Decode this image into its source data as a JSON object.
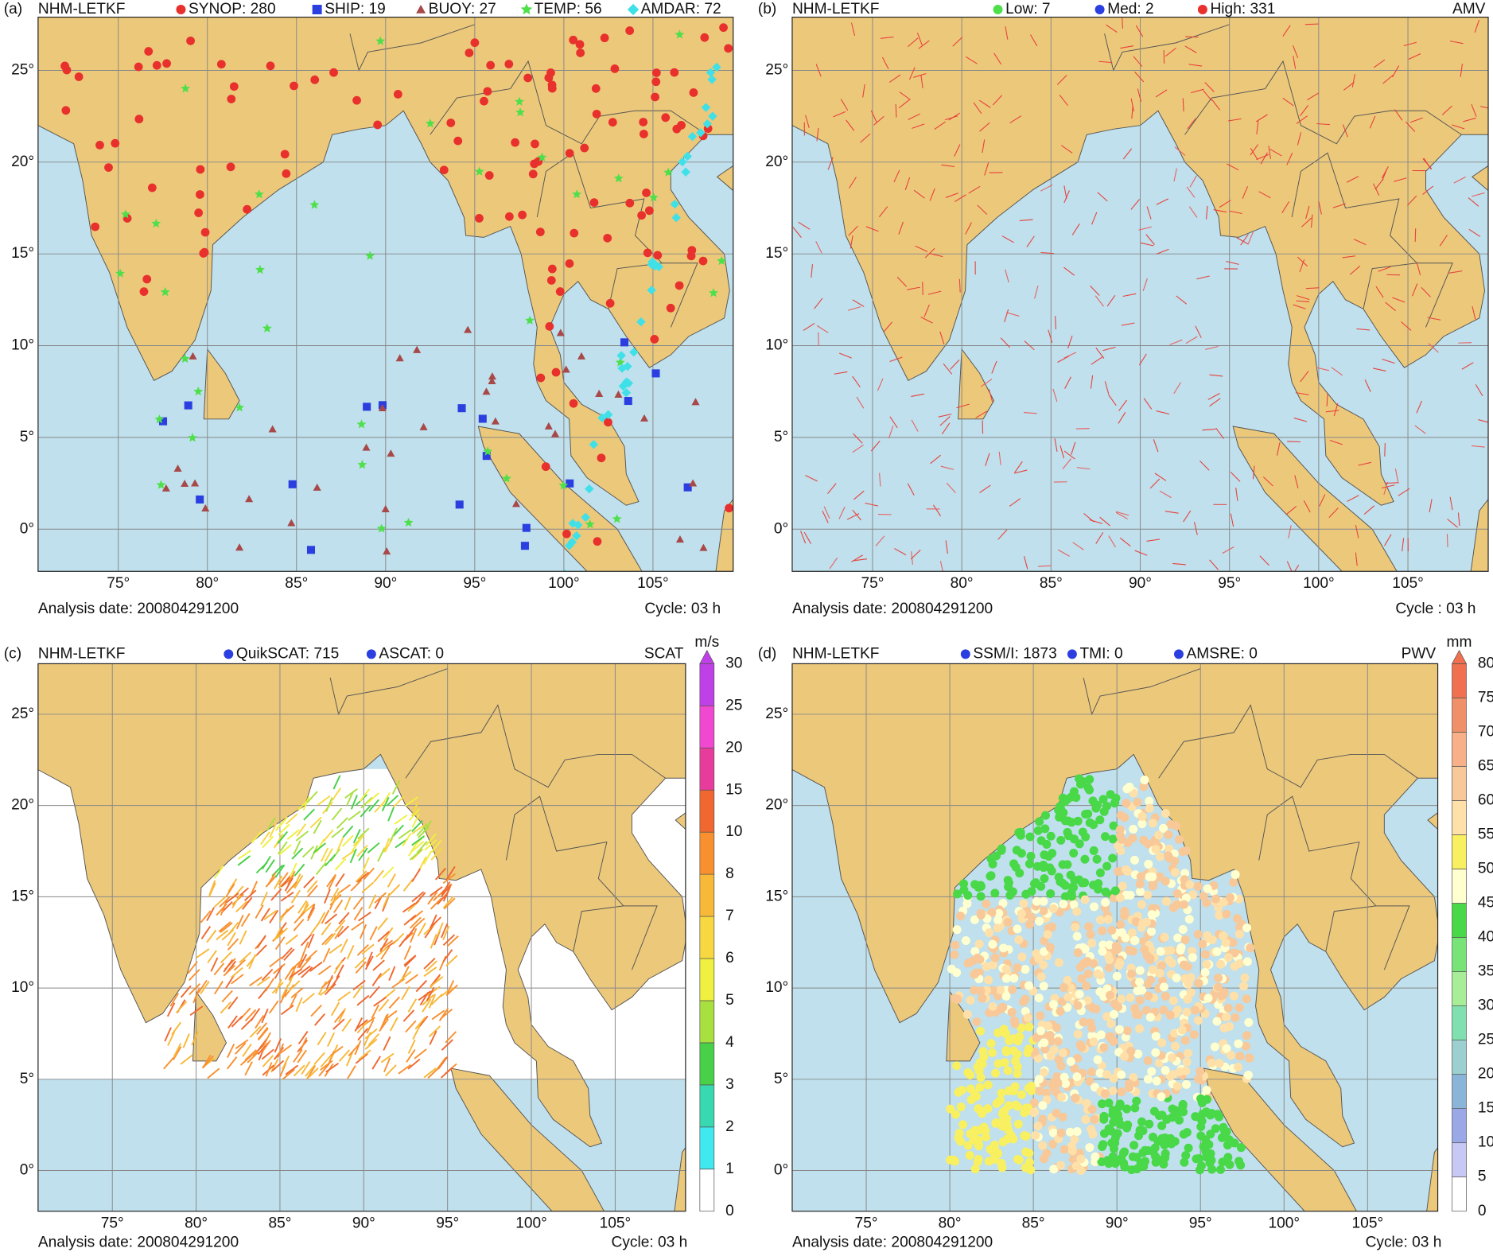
{
  "panels": [
    {
      "label": "(a)",
      "model": "NHM-LETKF",
      "legend": [
        {
          "label": "SYNOP: 280",
          "color": "#e8302c",
          "shape": "circle"
        },
        {
          "label": "SHIP: 19",
          "color": "#2b3fe0",
          "shape": "square"
        },
        {
          "label": "BUOY: 27",
          "color": "#a84848",
          "shape": "triangle"
        },
        {
          "label": "TEMP: 56",
          "color": "#4ee04a",
          "shape": "star"
        },
        {
          "label": "AMDAR: 72",
          "color": "#40e0e8",
          "shape": "diamond"
        }
      ],
      "lon_ticks": [
        "75°",
        "80°",
        "85°",
        "90°",
        "95°",
        "100°",
        "105°"
      ],
      "lat_ticks": [
        "0°",
        "5°",
        "10°",
        "15°",
        "20°",
        "25°"
      ],
      "analysis_date": "Analysis date: 200804291200",
      "cycle": "Cycle:  03 h"
    },
    {
      "label": "(b)",
      "model": "NHM-LETKF",
      "legend": [
        {
          "label": "Low: 7",
          "color": "#4ee04a",
          "shape": "circle"
        },
        {
          "label": "Med: 2",
          "color": "#2b3fe0",
          "shape": "circle"
        },
        {
          "label": "High: 331",
          "color": "#e8302c",
          "shape": "circle"
        }
      ],
      "tag": "AMV",
      "lon_ticks": [
        "75°",
        "80°",
        "85°",
        "90°",
        "95°",
        "100°",
        "105°"
      ],
      "lat_ticks": [
        "0°",
        "5°",
        "10°",
        "15°",
        "20°",
        "25°"
      ],
      "analysis_date": "Analysis date: 200804291200",
      "cycle": "Cycle : 03 h"
    },
    {
      "label": "(c)",
      "model": "NHM-LETKF",
      "legend": [
        {
          "label": "QuikSCAT: 715",
          "color": "#2b3fe0",
          "shape": "circle"
        },
        {
          "label": "ASCAT: 0",
          "color": "#2b3fe0",
          "shape": "circle"
        }
      ],
      "tag": "SCAT",
      "colorbar": {
        "unit": "m/s",
        "labels": [
          "0",
          "1",
          "2",
          "3",
          "4",
          "5",
          "6",
          "7",
          "8",
          "10",
          "15",
          "20",
          "25",
          "30"
        ]
      },
      "lon_ticks": [
        "75°",
        "80°",
        "85°",
        "90°",
        "95°",
        "100°",
        "105°"
      ],
      "lat_ticks": [
        "0°",
        "5°",
        "10°",
        "15°",
        "20°",
        "25°"
      ],
      "analysis_date": "Analysis date: 200804291200",
      "cycle": "Cycle: 03 h"
    },
    {
      "label": "(d)",
      "model": "NHM-LETKF",
      "legend": [
        {
          "label": "SSM/I: 1873",
          "color": "#2b3fe0",
          "shape": "circle"
        },
        {
          "label": "TMI: 0",
          "color": "#2b3fe0",
          "shape": "circle"
        },
        {
          "label": "AMSRE: 0",
          "color": "#2b3fe0",
          "shape": "circle"
        }
      ],
      "tag": "PWV",
      "colorbar": {
        "unit": "mm",
        "labels": [
          "0",
          "5",
          "10",
          "15",
          "20",
          "25",
          "30",
          "35",
          "40",
          "45",
          "50",
          "55",
          "60",
          "65",
          "70",
          "75",
          "80"
        ]
      },
      "lon_ticks": [
        "75°",
        "80°",
        "85°",
        "90°",
        "95°",
        "100°",
        "105°"
      ],
      "lat_ticks": [
        "0°",
        "5°",
        "10°",
        "15°",
        "20°",
        "25°"
      ],
      "analysis_date": "Analysis date: 200804291200",
      "cycle": "Cycle: 03 h"
    }
  ]
}
